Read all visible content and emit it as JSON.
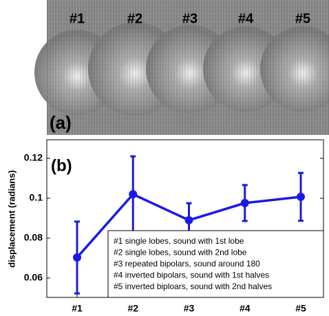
{
  "image_panel": {
    "labels": [
      "#1",
      "#2",
      "#3",
      "#4",
      "#5"
    ],
    "tag": "(a)"
  },
  "chart_data": {
    "type": "line",
    "annotation": "(b)",
    "y_label": "displacement (radians)",
    "categories": [
      "#1",
      "#2",
      "#3",
      "#4",
      "#5"
    ],
    "series": [
      {
        "color": "#1a1ae6",
        "values": [
          0.0703,
          0.102,
          0.089,
          0.0976,
          0.1007
        ],
        "errors": [
          0.018,
          0.019,
          0.0085,
          0.009,
          0.012
        ]
      }
    ],
    "ylim": [
      0.0503,
      0.1293
    ],
    "yticks": [
      0.06,
      0.08,
      0.1,
      0.12
    ],
    "notes": [
      "#1 single lobes, sound with 1st lobe",
      "#2 single lobes, sound with 2nd lobe",
      "#3 repeated bipolars, sound around 180",
      "#4 inverted bipolars, sound with 1st halves",
      "#5 inverted biploars, sound with 2nd halves"
    ]
  }
}
